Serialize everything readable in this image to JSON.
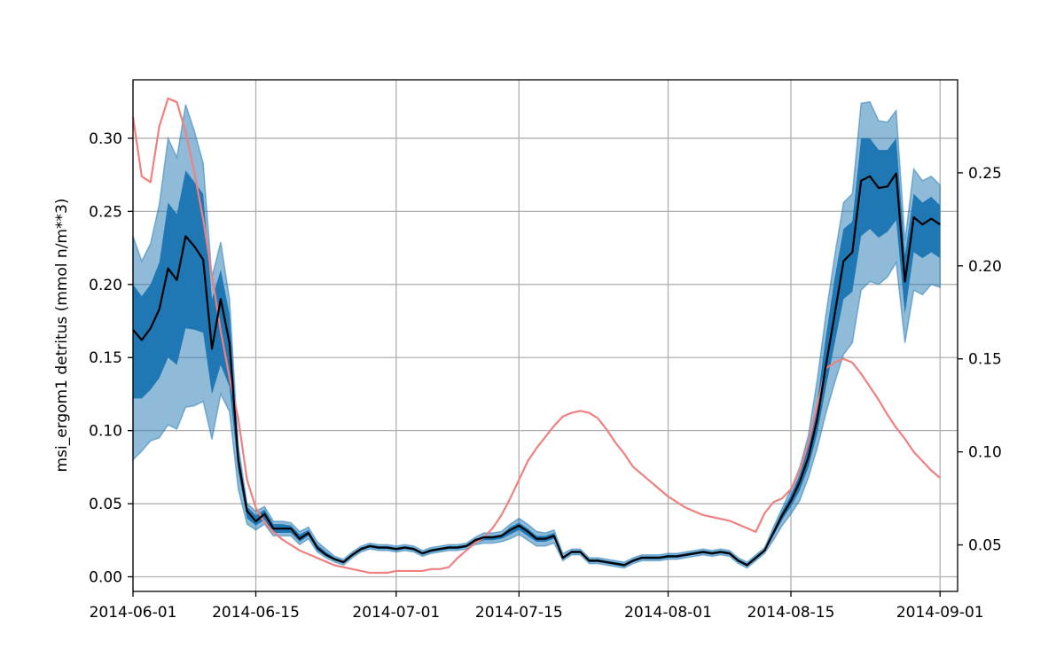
{
  "chart_data": {
    "type": "line",
    "title": "",
    "xlabel": "",
    "ylabel": "msi_ergom1 detritus (mmol n/m**3)",
    "y2label": "",
    "grid": true,
    "legend": "none",
    "x_start": "2014-06-01",
    "x_step_days": 1,
    "xlim": [
      "2014-06-01",
      "2014-09-03"
    ],
    "ylim": [
      -0.01,
      0.34
    ],
    "y2lim": [
      0.025,
      0.3
    ],
    "x_ticks": [
      "2014-06-01",
      "2014-06-15",
      "2014-07-01",
      "2014-07-15",
      "2014-08-01",
      "2014-08-15",
      "2014-09-01"
    ],
    "y_ticks": [
      0.0,
      0.05,
      0.1,
      0.15,
      0.2,
      0.25,
      0.3
    ],
    "y_tick_labels": [
      "0.00",
      "0.05",
      "0.10",
      "0.15",
      "0.20",
      "0.25",
      "0.30"
    ],
    "y2_ticks": [
      0.05,
      0.1,
      0.15,
      0.2,
      0.25
    ],
    "y2_tick_labels": [
      "0.05",
      "0.10",
      "0.15",
      "0.20",
      "0.25"
    ],
    "colors": {
      "median": "#000000",
      "inner_band": "#1f77b4",
      "outer_band": "#1f77b4",
      "secondary": "#f08080"
    },
    "series": [
      {
        "role": "median",
        "values": [
          0.169,
          0.162,
          0.17,
          0.183,
          0.211,
          0.203,
          0.233,
          0.226,
          0.217,
          0.156,
          0.19,
          0.16,
          0.08,
          0.045,
          0.038,
          0.043,
          0.033,
          0.033,
          0.033,
          0.026,
          0.03,
          0.02,
          0.015,
          0.012,
          0.01,
          0.015,
          0.019,
          0.021,
          0.02,
          0.02,
          0.019,
          0.02,
          0.019,
          0.016,
          0.018,
          0.019,
          0.02,
          0.02,
          0.021,
          0.025,
          0.027,
          0.027,
          0.028,
          0.032,
          0.035,
          0.031,
          0.026,
          0.026,
          0.028,
          0.013,
          0.017,
          0.017,
          0.011,
          0.011,
          0.01,
          0.009,
          0.008,
          0.011,
          0.013,
          0.013,
          0.013,
          0.014,
          0.014,
          0.015,
          0.016,
          0.017,
          0.016,
          0.017,
          0.016,
          0.011,
          0.008,
          0.013,
          0.018,
          0.03,
          0.042,
          0.052,
          0.065,
          0.082,
          0.108,
          0.145,
          0.18,
          0.216,
          0.222,
          0.271,
          0.274,
          0.266,
          0.267,
          0.276,
          0.202,
          0.246,
          0.241,
          0.245,
          0.241
        ]
      },
      {
        "role": "inner_band_upper",
        "values": [
          0.2,
          0.192,
          0.2,
          0.215,
          0.256,
          0.248,
          0.278,
          0.27,
          0.262,
          0.19,
          0.21,
          0.18,
          0.086,
          0.048,
          0.042,
          0.046,
          0.036,
          0.036,
          0.035,
          0.029,
          0.032,
          0.022,
          0.017,
          0.013,
          0.011,
          0.016,
          0.02,
          0.022,
          0.021,
          0.021,
          0.02,
          0.021,
          0.02,
          0.017,
          0.019,
          0.02,
          0.021,
          0.021,
          0.022,
          0.026,
          0.028,
          0.028,
          0.029,
          0.034,
          0.037,
          0.033,
          0.028,
          0.028,
          0.03,
          0.014,
          0.018,
          0.018,
          0.012,
          0.012,
          0.011,
          0.01,
          0.009,
          0.012,
          0.014,
          0.014,
          0.014,
          0.015,
          0.015,
          0.016,
          0.017,
          0.018,
          0.017,
          0.018,
          0.017,
          0.012,
          0.009,
          0.014,
          0.019,
          0.032,
          0.045,
          0.056,
          0.07,
          0.09,
          0.12,
          0.165,
          0.205,
          0.238,
          0.243,
          0.3,
          0.3,
          0.292,
          0.292,
          0.3,
          0.22,
          0.262,
          0.256,
          0.26,
          0.254
        ]
      },
      {
        "role": "inner_band_lower",
        "values": [
          0.122,
          0.122,
          0.128,
          0.136,
          0.15,
          0.145,
          0.17,
          0.169,
          0.167,
          0.125,
          0.145,
          0.13,
          0.072,
          0.04,
          0.035,
          0.039,
          0.03,
          0.03,
          0.03,
          0.024,
          0.028,
          0.018,
          0.014,
          0.011,
          0.009,
          0.014,
          0.018,
          0.02,
          0.019,
          0.019,
          0.018,
          0.019,
          0.018,
          0.015,
          0.017,
          0.018,
          0.019,
          0.019,
          0.02,
          0.023,
          0.025,
          0.025,
          0.026,
          0.029,
          0.032,
          0.028,
          0.024,
          0.024,
          0.026,
          0.012,
          0.016,
          0.016,
          0.01,
          0.01,
          0.009,
          0.008,
          0.007,
          0.01,
          0.012,
          0.012,
          0.012,
          0.013,
          0.013,
          0.014,
          0.015,
          0.016,
          0.015,
          0.016,
          0.015,
          0.01,
          0.007,
          0.012,
          0.017,
          0.028,
          0.039,
          0.048,
          0.059,
          0.075,
          0.098,
          0.13,
          0.16,
          0.19,
          0.195,
          0.233,
          0.238,
          0.232,
          0.236,
          0.244,
          0.18,
          0.222,
          0.218,
          0.222,
          0.218
        ]
      },
      {
        "role": "outer_band_upper",
        "values": [
          0.233,
          0.216,
          0.228,
          0.255,
          0.3,
          0.287,
          0.323,
          0.305,
          0.283,
          0.205,
          0.229,
          0.19,
          0.09,
          0.05,
          0.045,
          0.048,
          0.038,
          0.038,
          0.037,
          0.031,
          0.034,
          0.024,
          0.019,
          0.014,
          0.012,
          0.017,
          0.021,
          0.023,
          0.022,
          0.022,
          0.021,
          0.022,
          0.021,
          0.018,
          0.02,
          0.021,
          0.022,
          0.022,
          0.023,
          0.027,
          0.03,
          0.03,
          0.031,
          0.036,
          0.04,
          0.036,
          0.031,
          0.03,
          0.032,
          0.016,
          0.019,
          0.019,
          0.013,
          0.013,
          0.012,
          0.011,
          0.01,
          0.013,
          0.015,
          0.015,
          0.015,
          0.016,
          0.016,
          0.017,
          0.018,
          0.019,
          0.018,
          0.019,
          0.018,
          0.013,
          0.01,
          0.015,
          0.02,
          0.034,
          0.047,
          0.06,
          0.075,
          0.097,
          0.135,
          0.18,
          0.22,
          0.256,
          0.262,
          0.324,
          0.325,
          0.312,
          0.311,
          0.319,
          0.23,
          0.279,
          0.271,
          0.274,
          0.268
        ]
      },
      {
        "role": "outer_band_lower",
        "values": [
          0.08,
          0.086,
          0.093,
          0.095,
          0.104,
          0.101,
          0.116,
          0.117,
          0.12,
          0.094,
          0.125,
          0.113,
          0.06,
          0.036,
          0.032,
          0.036,
          0.028,
          0.028,
          0.028,
          0.022,
          0.026,
          0.017,
          0.013,
          0.01,
          0.008,
          0.013,
          0.017,
          0.019,
          0.018,
          0.018,
          0.017,
          0.018,
          0.017,
          0.014,
          0.016,
          0.017,
          0.018,
          0.018,
          0.019,
          0.022,
          0.023,
          0.023,
          0.024,
          0.026,
          0.029,
          0.025,
          0.021,
          0.021,
          0.023,
          0.011,
          0.015,
          0.015,
          0.009,
          0.009,
          0.008,
          0.007,
          0.006,
          0.009,
          0.011,
          0.011,
          0.011,
          0.012,
          0.012,
          0.013,
          0.014,
          0.015,
          0.014,
          0.015,
          0.014,
          0.009,
          0.006,
          0.011,
          0.016,
          0.025,
          0.035,
          0.043,
          0.052,
          0.068,
          0.088,
          0.112,
          0.133,
          0.152,
          0.16,
          0.196,
          0.202,
          0.2,
          0.205,
          0.215,
          0.16,
          0.196,
          0.193,
          0.2,
          0.198
        ]
      },
      {
        "role": "secondary",
        "axis": "right",
        "values": [
          0.28,
          0.248,
          0.245,
          0.275,
          0.29,
          0.288,
          0.272,
          0.25,
          0.225,
          0.195,
          0.165,
          0.14,
          0.118,
          0.085,
          0.07,
          0.062,
          0.057,
          0.053,
          0.05,
          0.047,
          0.045,
          0.043,
          0.041,
          0.039,
          0.038,
          0.037,
          0.036,
          0.035,
          0.035,
          0.035,
          0.036,
          0.036,
          0.036,
          0.036,
          0.037,
          0.037,
          0.038,
          0.043,
          0.047,
          0.051,
          0.054,
          0.059,
          0.066,
          0.075,
          0.085,
          0.095,
          0.102,
          0.108,
          0.114,
          0.119,
          0.121,
          0.122,
          0.121,
          0.118,
          0.112,
          0.105,
          0.099,
          0.092,
          0.088,
          0.084,
          0.08,
          0.076,
          0.073,
          0.07,
          0.068,
          0.066,
          0.065,
          0.064,
          0.063,
          0.061,
          0.059,
          0.057,
          0.067,
          0.073,
          0.075,
          0.08,
          0.09,
          0.105,
          0.125,
          0.145,
          0.148,
          0.15,
          0.148,
          0.142,
          0.135,
          0.128,
          0.12,
          0.113,
          0.107,
          0.1,
          0.095,
          0.09,
          0.086
        ]
      }
    ]
  }
}
